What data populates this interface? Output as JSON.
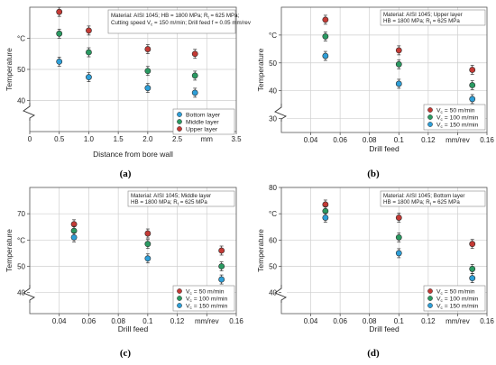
{
  "chart_data": [
    {
      "type": "scatter",
      "panel_label": "(a)",
      "xlabel": "Distance from bore wall",
      "ylabel": "Temperature",
      "y_unit_label": "°C",
      "x_unit_label": "mm",
      "xlim": [
        0,
        3.5
      ],
      "ylim": [
        30,
        70
      ],
      "xticks": [
        0,
        0.5,
        1.0,
        1.5,
        2.0,
        2.5,
        3.0,
        3.5
      ],
      "xtick_labels": [
        "0",
        "0.5",
        "1.0",
        "1.5",
        "2.0",
        "2.5",
        "mm",
        "3.5"
      ],
      "yticks": [
        40,
        50,
        60
      ],
      "ytick_labels": [
        "40",
        "50",
        "°C"
      ],
      "y_break": true,
      "grid": true,
      "legend_position": "bottom-right",
      "annotation": [
        "Material: AISI 1045; HB = 1800 MPa; R",
        "= 625 MPa;",
        "Cutting speed V",
        "= 150 m/min; Drill feed f = 0.05 mm/rev"
      ],
      "series": [
        {
          "name": "Bottom layer",
          "color": "#2e9fd8",
          "x": [
            0.5,
            1.0,
            2.0,
            2.8
          ],
          "y": [
            52.5,
            47.5,
            44,
            42.5
          ]
        },
        {
          "name": "Middle layer",
          "color": "#2a9a62",
          "x": [
            0.5,
            1.0,
            2.0,
            2.8
          ],
          "y": [
            61.5,
            55.5,
            49.5,
            48
          ]
        },
        {
          "name": "Upper layer",
          "color": "#c43a35",
          "x": [
            0.5,
            1.0,
            2.0,
            2.8
          ],
          "y": [
            68.5,
            62.5,
            56.5,
            55
          ]
        }
      ]
    },
    {
      "type": "scatter",
      "panel_label": "(b)",
      "xlabel": "Drill feed",
      "ylabel": "Temperature",
      "y_unit_label": "°C",
      "x_unit_label": "mm/rev",
      "xlim": [
        0.02,
        0.16
      ],
      "ylim": [
        25,
        70
      ],
      "xticks": [
        0.04,
        0.06,
        0.08,
        0.1,
        0.12,
        0.14,
        0.16
      ],
      "xtick_labels": [
        "0.04",
        "0.06",
        "0.08",
        "0.1",
        "0.12",
        "mm/rev",
        "0.16"
      ],
      "yticks": [
        30,
        40,
        50,
        60
      ],
      "ytick_labels": [
        "30",
        "40",
        "50",
        "°C"
      ],
      "y_break": true,
      "grid": true,
      "legend_position": "bottom-right",
      "annotation": [
        "Material: AISI 1045; Upper layer",
        "HB = 1800 MPa; R",
        "= 625 MPa"
      ],
      "series": [
        {
          "name": "50 m/min",
          "color": "#c43a35",
          "x": [
            0.05,
            0.1,
            0.15
          ],
          "y": [
            65.5,
            54.5,
            47.5
          ]
        },
        {
          "name": "100 m/min",
          "color": "#2a9a62",
          "x": [
            0.05,
            0.1,
            0.15
          ],
          "y": [
            59.5,
            49.5,
            42
          ]
        },
        {
          "name": "150 m/min",
          "color": "#2e9fd8",
          "x": [
            0.05,
            0.1,
            0.15
          ],
          "y": [
            52.5,
            42.5,
            37
          ]
        }
      ]
    },
    {
      "type": "scatter",
      "panel_label": "(c)",
      "xlabel": "Drill feed",
      "ylabel": "Temperature",
      "y_unit_label": "°C",
      "x_unit_label": "mm/rev",
      "xlim": [
        0.02,
        0.16
      ],
      "ylim": [
        32,
        80
      ],
      "xticks": [
        0.04,
        0.06,
        0.08,
        0.1,
        0.12,
        0.14,
        0.16
      ],
      "xtick_labels": [
        "0.04",
        "0.06",
        "0.08",
        "0.1",
        "0.12",
        "mm/rev",
        "0.16"
      ],
      "yticks": [
        40,
        50,
        60,
        70
      ],
      "ytick_labels": [
        "40",
        "50",
        "°C",
        "70"
      ],
      "y_break": true,
      "grid": true,
      "legend_position": "bottom-right",
      "annotation": [
        "Material: AISI 1045; Middle layer",
        "HB = 1800 MPa; R",
        "= 625 MPa"
      ],
      "series": [
        {
          "name": "50 m/min",
          "color": "#c43a35",
          "x": [
            0.05,
            0.1,
            0.15
          ],
          "y": [
            66,
            62.5,
            56
          ]
        },
        {
          "name": "100 m/min",
          "color": "#2a9a62",
          "x": [
            0.05,
            0.1,
            0.15
          ],
          "y": [
            63.5,
            58.5,
            50
          ]
        },
        {
          "name": "150 m/min",
          "color": "#2e9fd8",
          "x": [
            0.05,
            0.1,
            0.15
          ],
          "y": [
            61,
            53,
            45
          ]
        }
      ]
    },
    {
      "type": "scatter",
      "panel_label": "(d)",
      "xlabel": "Drill feed",
      "ylabel": "Temperature",
      "y_unit_label": "°C",
      "x_unit_label": "mm/rev",
      "xlim": [
        0.02,
        0.16
      ],
      "ylim": [
        32,
        80
      ],
      "xticks": [
        0.04,
        0.06,
        0.08,
        0.1,
        0.12,
        0.14,
        0.16
      ],
      "xtick_labels": [
        "0.04",
        "0.06",
        "0.08",
        "0.1",
        "0.12",
        "mm/rev",
        "0.16"
      ],
      "yticks": [
        40,
        50,
        60,
        70,
        80
      ],
      "ytick_labels": [
        "40",
        "50",
        "60",
        "°C",
        "80"
      ],
      "y_break": true,
      "grid": true,
      "legend_position": "bottom-right",
      "annotation": [
        "Material: AISI 1045; Bottom layer",
        "HB = 1800 MPa; R",
        "= 625 MPa"
      ],
      "series": [
        {
          "name": "50 m/min",
          "color": "#c43a35",
          "x": [
            0.05,
            0.1,
            0.15
          ],
          "y": [
            73.5,
            68.5,
            58.5
          ]
        },
        {
          "name": "100 m/min",
          "color": "#2a9a62",
          "x": [
            0.05,
            0.1,
            0.15
          ],
          "y": [
            71,
            61,
            49
          ]
        },
        {
          "name": "150 m/min",
          "color": "#2e9fd8",
          "x": [
            0.05,
            0.1,
            0.15
          ],
          "y": [
            68.5,
            55,
            45.5
          ]
        }
      ]
    }
  ]
}
